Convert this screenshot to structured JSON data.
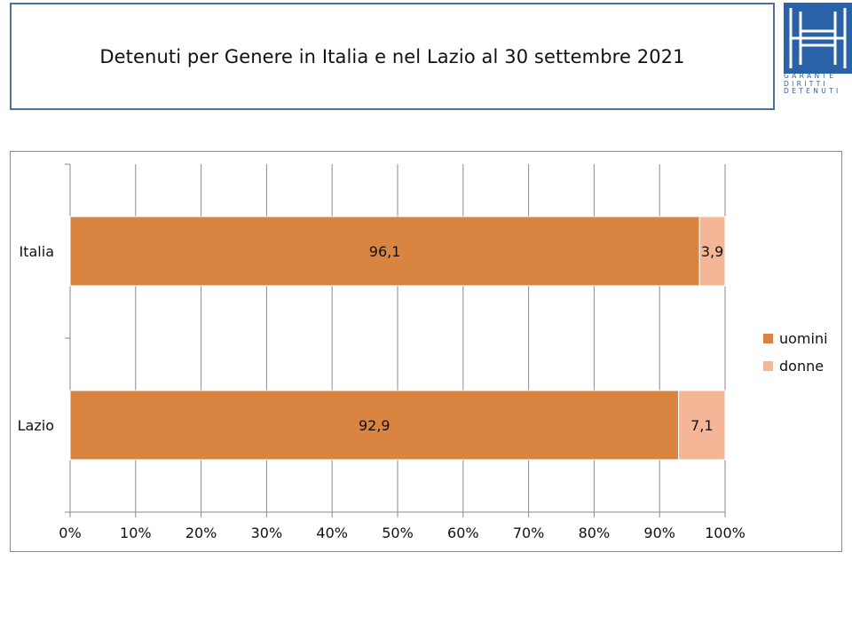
{
  "header": {
    "title": "Detenuti per Genere in Italia e nel Lazio al 30 settembre 2021",
    "logo_lines": [
      "GARANTE",
      "DIRITTI",
      "DETENUTI"
    ]
  },
  "chart_data": {
    "type": "bar",
    "orientation": "horizontal",
    "stacked": "percent",
    "categories": [
      "Italia",
      "Lazio"
    ],
    "series": [
      {
        "name": "uomini",
        "values": [
          96.1,
          92.9
        ],
        "labels": [
          "96,1",
          "92,9"
        ],
        "color": "#d98441"
      },
      {
        "name": "donne",
        "values": [
          3.9,
          7.1
        ],
        "labels": [
          "3,9",
          "7,1"
        ],
        "color": "#f5b697"
      }
    ],
    "xlim": [
      0,
      100
    ],
    "x_ticks": [
      "0%",
      "10%",
      "20%",
      "30%",
      "40%",
      "50%",
      "60%",
      "70%",
      "80%",
      "90%",
      "100%"
    ],
    "grid": true,
    "legend": "right"
  }
}
